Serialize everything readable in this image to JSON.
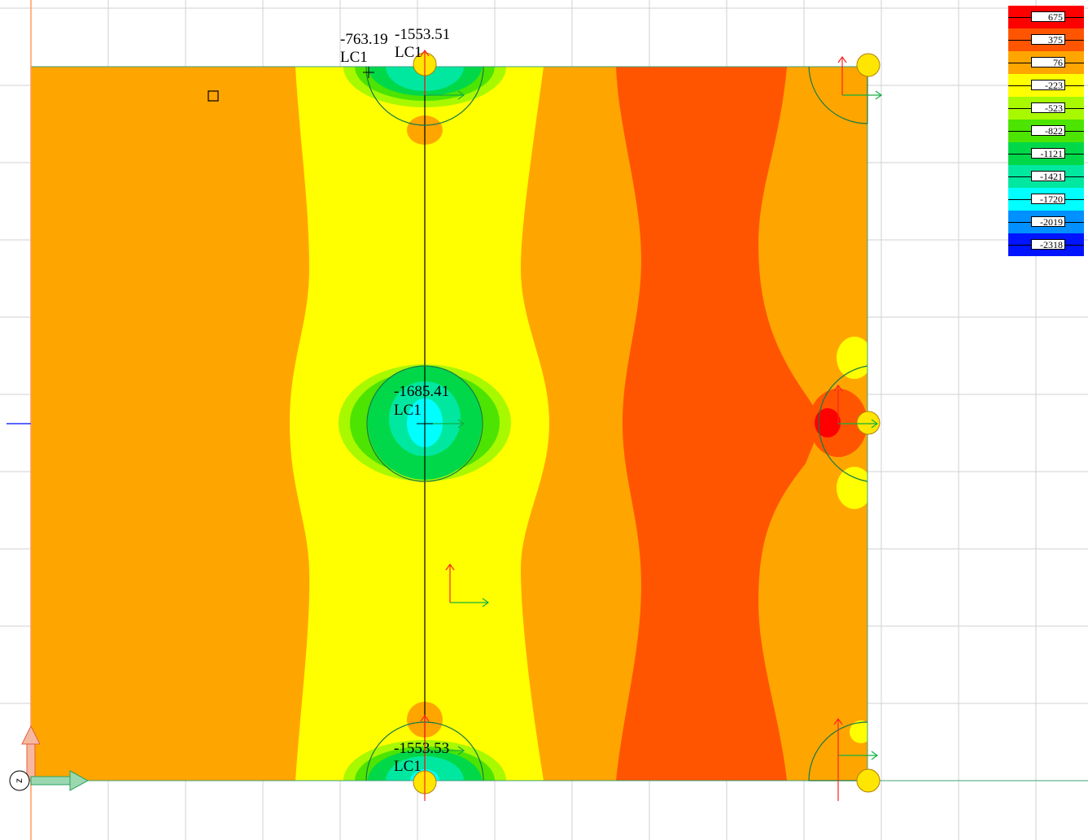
{
  "colors": {
    "red": "#ff0000",
    "red_orange": "#ff5500",
    "orange": "#ffa500",
    "yellow": "#ffff00",
    "yellow_green": "#a8f800",
    "light_green": "#4ce400",
    "green": "#00d84a",
    "green_cyan": "#00e8a0",
    "cyan": "#00ffff",
    "sky": "#0090ff",
    "blue": "#0014ff",
    "grid": "#d0d0d0",
    "edge": "#3ea07a",
    "support_fill": "#ffe600"
  },
  "legend": {
    "items": [
      {
        "value": "675",
        "color": "#ff0000"
      },
      {
        "value": "375",
        "color": "#ff5500"
      },
      {
        "value": "76",
        "color": "#ffa500"
      },
      {
        "value": "-223",
        "color": "#ffff00"
      },
      {
        "value": "-523",
        "color": "#a8f800"
      },
      {
        "value": "-822",
        "color": "#4ce400"
      },
      {
        "value": "-1121",
        "color": "#00d84a"
      },
      {
        "value": "-1421",
        "color": "#00e8a0"
      },
      {
        "value": "-1720",
        "color": "#00ffff"
      },
      {
        "value": "-2019",
        "color": "#0090ff"
      },
      {
        "value": "-2318",
        "color": "#0014ff"
      }
    ]
  },
  "labels": {
    "top_left_value": "-763.19",
    "top_left_case": "LC1",
    "top_value": "-1553.51",
    "top_case": "LC1",
    "mid_value": "-1685.41",
    "mid_case": "LC1",
    "bottom_value": "-1553.53",
    "bottom_case": "LC1"
  },
  "axis": {
    "label": "z",
    "x_icon": "x-axis-arrow-icon",
    "y_icon": "y-axis-arrow-icon"
  }
}
